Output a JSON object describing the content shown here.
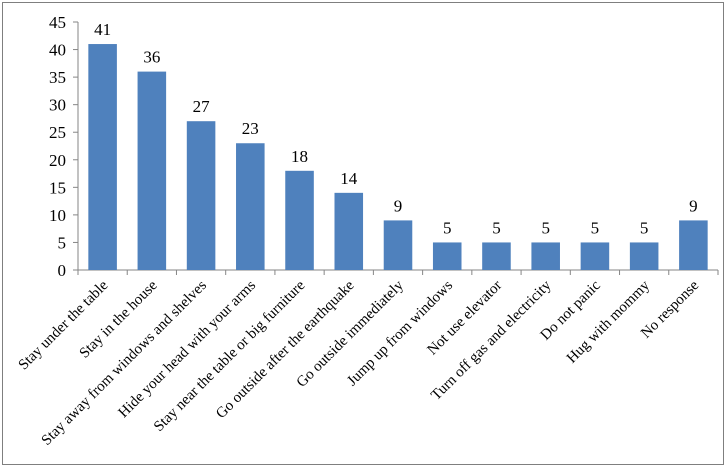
{
  "chart_data": {
    "type": "bar",
    "categories": [
      "Stay under the table",
      "Stay in the house",
      "Stay away from windows and shelves",
      "Hide your head with your arms",
      "Stay near the table or big furniture",
      "Go outside after the earthquake",
      "Go outside immediately",
      "Jump up from windows",
      "Not use elevator",
      "Turn off gas and electricity",
      "Do not panic",
      "Hug with mommy",
      "No response"
    ],
    "values": [
      41,
      36,
      27,
      23,
      18,
      14,
      9,
      5,
      5,
      5,
      5,
      5,
      9
    ],
    "ylim": [
      0,
      45
    ],
    "yticks": [
      0,
      5,
      10,
      15,
      20,
      25,
      30,
      35,
      40,
      45
    ],
    "title": "",
    "xlabel": "",
    "ylabel": "",
    "grid": false,
    "bar_color": "#4f81bd",
    "axis_color": "#868686"
  }
}
